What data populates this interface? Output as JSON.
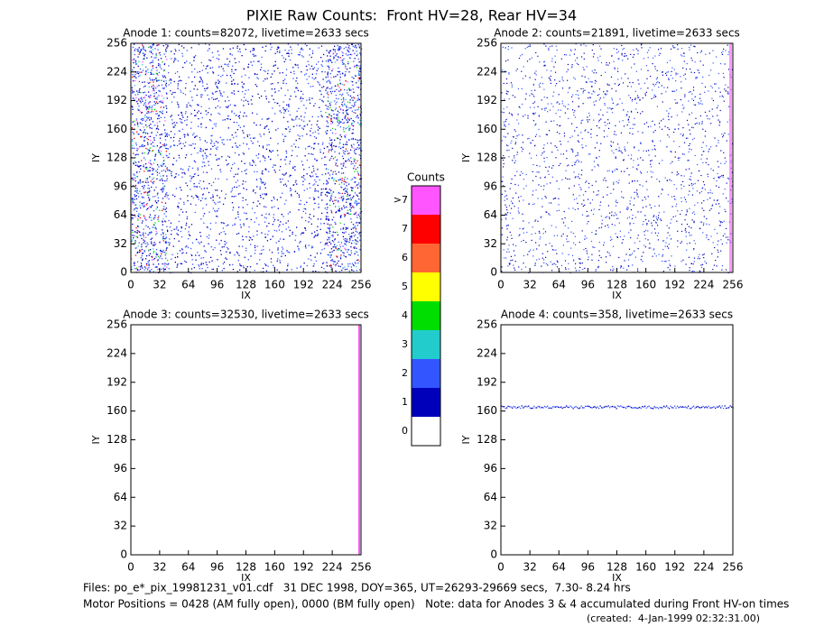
{
  "title": "PIXIE Raw Counts:  Front HV=28, Rear HV=34",
  "chart_data": [
    {
      "type": "heatmap",
      "title": "Anode 1: counts=82072, livetime=2633 secs",
      "xlabel": "IX",
      "ylabel": "IY",
      "xlim": [
        0,
        256
      ],
      "ylim": [
        0,
        256
      ],
      "xticks": [
        0,
        32,
        64,
        96,
        128,
        160,
        192,
        224,
        256
      ],
      "yticks": [
        0,
        32,
        64,
        96,
        128,
        160,
        192,
        224,
        256
      ]
    },
    {
      "type": "heatmap",
      "title": "Anode 2: counts=21891, livetime=2633 secs",
      "xlabel": "IX",
      "ylabel": "IY",
      "xlim": [
        0,
        256
      ],
      "ylim": [
        0,
        256
      ],
      "xticks": [
        0,
        32,
        64,
        96,
        128,
        160,
        192,
        224,
        256
      ],
      "yticks": [
        0,
        32,
        64,
        96,
        128,
        160,
        192,
        224,
        256
      ]
    },
    {
      "type": "heatmap",
      "title": "Anode 3: counts=32530, livetime=2633 secs",
      "xlabel": "IX",
      "ylabel": "IY",
      "xlim": [
        0,
        256
      ],
      "ylim": [
        0,
        256
      ],
      "xticks": [
        0,
        32,
        64,
        96,
        128,
        160,
        192,
        224,
        256
      ],
      "yticks": [
        0,
        32,
        64,
        96,
        128,
        160,
        192,
        224,
        256
      ]
    },
    {
      "type": "heatmap",
      "title": "Anode 4: counts=358, livetime=2633 secs",
      "xlabel": "IX",
      "ylabel": "IY",
      "xlim": [
        0,
        256
      ],
      "ylim": [
        0,
        256
      ],
      "xticks": [
        0,
        32,
        64,
        96,
        128,
        160,
        192,
        224,
        256
      ],
      "yticks": [
        0,
        32,
        64,
        96,
        128,
        160,
        192,
        224,
        256
      ]
    },
    {
      "type": "colorbar",
      "title": "Counts",
      "categories": [
        "0",
        "1",
        "2",
        "3",
        "4",
        "5",
        "6",
        "7",
        ">7"
      ],
      "colors": [
        "#ffffff",
        "#0000bb",
        "#3355ff",
        "#22cccc",
        "#00dd00",
        "#ffff00",
        "#ff6633",
        "#ff0000",
        "#ff55ff"
      ]
    }
  ],
  "footer": {
    "files": "Files: po_e*_pix_19981231_v01.cdf   31 DEC 1998, DOY=365, UT=26293-29669 secs,  7.30- 8.24 hrs",
    "motor": "Motor Positions = 0428 (AM fully open), 0000 (BM fully open)   Note: data for Anodes 3 & 4 accumulated during Front HV-on times",
    "created": "(created:  4-Jan-1999 02:32:31.00)"
  }
}
